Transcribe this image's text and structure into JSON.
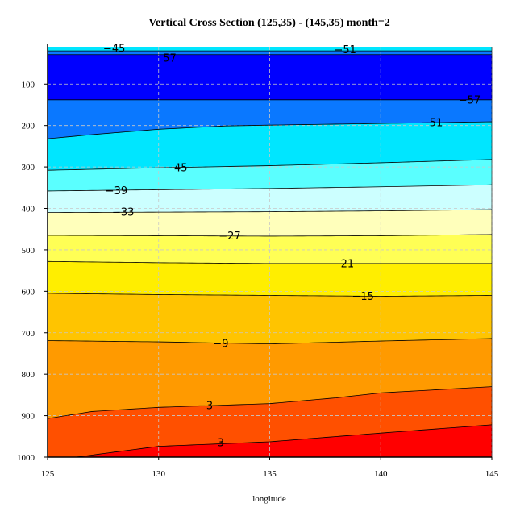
{
  "chart_data": {
    "type": "contour",
    "title": "Vertical Cross Section (125,35) - (145,35) month=2",
    "xlabel": "longitude",
    "ylabel": "",
    "xlim": [
      125,
      145
    ],
    "ylim": [
      1000,
      10
    ],
    "x_ticks": [
      125,
      130,
      135,
      140,
      145
    ],
    "y_ticks": [
      100,
      200,
      300,
      400,
      500,
      600,
      700,
      800,
      900,
      1000
    ],
    "grid": true,
    "contour_interval": 6,
    "colors": [
      "#0000ff",
      "#0a78ff",
      "#00e6ff",
      "#5affff",
      "#ccffff",
      "#ffffbb",
      "#ffff55",
      "#ffee00",
      "#ffc400",
      "#ff9a00",
      "#ff5000",
      "#ff0000"
    ],
    "contours": [
      {
        "level": -57,
        "points": [
          [
            125,
            138
          ],
          [
            145,
            138
          ]
        ]
      },
      {
        "level": -51,
        "points": [
          [
            125,
            232
          ],
          [
            127,
            222
          ],
          [
            130,
            209
          ],
          [
            133,
            201
          ],
          [
            135,
            199
          ],
          [
            140,
            195
          ],
          [
            145,
            191
          ]
        ]
      },
      {
        "level": -45,
        "points": [
          [
            125,
            308
          ],
          [
            130,
            302
          ],
          [
            135,
            297
          ],
          [
            140,
            290
          ],
          [
            145,
            282
          ]
        ]
      },
      {
        "level": -39,
        "points": [
          [
            125,
            358
          ],
          [
            130,
            355
          ],
          [
            135,
            352
          ],
          [
            140,
            348
          ],
          [
            145,
            343
          ]
        ]
      },
      {
        "level": -33,
        "points": [
          [
            125,
            410
          ],
          [
            130,
            409
          ],
          [
            135,
            408
          ],
          [
            140,
            406
          ],
          [
            145,
            403
          ]
        ]
      },
      {
        "level": -27,
        "points": [
          [
            125,
            465
          ],
          [
            130,
            466
          ],
          [
            135,
            467
          ],
          [
            140,
            466
          ],
          [
            145,
            463
          ]
        ]
      },
      {
        "level": -21,
        "points": [
          [
            125,
            528
          ],
          [
            130,
            531
          ],
          [
            135,
            533
          ],
          [
            140,
            533
          ],
          [
            145,
            533
          ]
        ]
      },
      {
        "level": -15,
        "points": [
          [
            125,
            605
          ],
          [
            130,
            608
          ],
          [
            135,
            610
          ],
          [
            140,
            612
          ],
          [
            145,
            610
          ]
        ]
      },
      {
        "level": -9,
        "points": [
          [
            125,
            719
          ],
          [
            130,
            722
          ],
          [
            135,
            727
          ],
          [
            140,
            720
          ],
          [
            145,
            714
          ]
        ]
      },
      {
        "level": -3,
        "points": [
          [
            125,
            907
          ],
          [
            127,
            890
          ],
          [
            130,
            880
          ],
          [
            135,
            871
          ],
          [
            138,
            857
          ],
          [
            140,
            845
          ],
          [
            145,
            830
          ]
        ]
      },
      {
        "level": 3,
        "points": [
          [
            126.3,
            1000
          ],
          [
            128,
            988
          ],
          [
            130,
            974
          ],
          [
            135,
            963
          ],
          [
            140,
            942
          ],
          [
            145,
            922
          ]
        ]
      }
    ],
    "top_levels": [
      {
        "level": -51,
        "pressure": 20
      },
      {
        "level": -45,
        "pressure": 29
      }
    ],
    "contour_labels": [
      {
        "text": "−45",
        "x": 128.0,
        "y": 14
      },
      {
        "text": "−51",
        "x": 138.4,
        "y": 17
      },
      {
        "text": "57",
        "x": 130.5,
        "y": 37
      },
      {
        "text": "−57",
        "x": 144.0,
        "y": 138
      },
      {
        "text": "−51",
        "x": 142.3,
        "y": 193
      },
      {
        "text": "−45",
        "x": 130.8,
        "y": 302
      },
      {
        "text": "−39",
        "x": 128.1,
        "y": 357
      },
      {
        "text": "−33",
        "x": 128.4,
        "y": 409
      },
      {
        "text": "−27",
        "x": 133.2,
        "y": 466
      },
      {
        "text": "−21",
        "x": 138.3,
        "y": 533
      },
      {
        "text": "−15",
        "x": 139.2,
        "y": 612
      },
      {
        "text": "−9",
        "x": 132.8,
        "y": 726
      },
      {
        "text": "−3",
        "x": 132.1,
        "y": 876
      },
      {
        "text": "3",
        "x": 132.8,
        "y": 965
      }
    ]
  }
}
